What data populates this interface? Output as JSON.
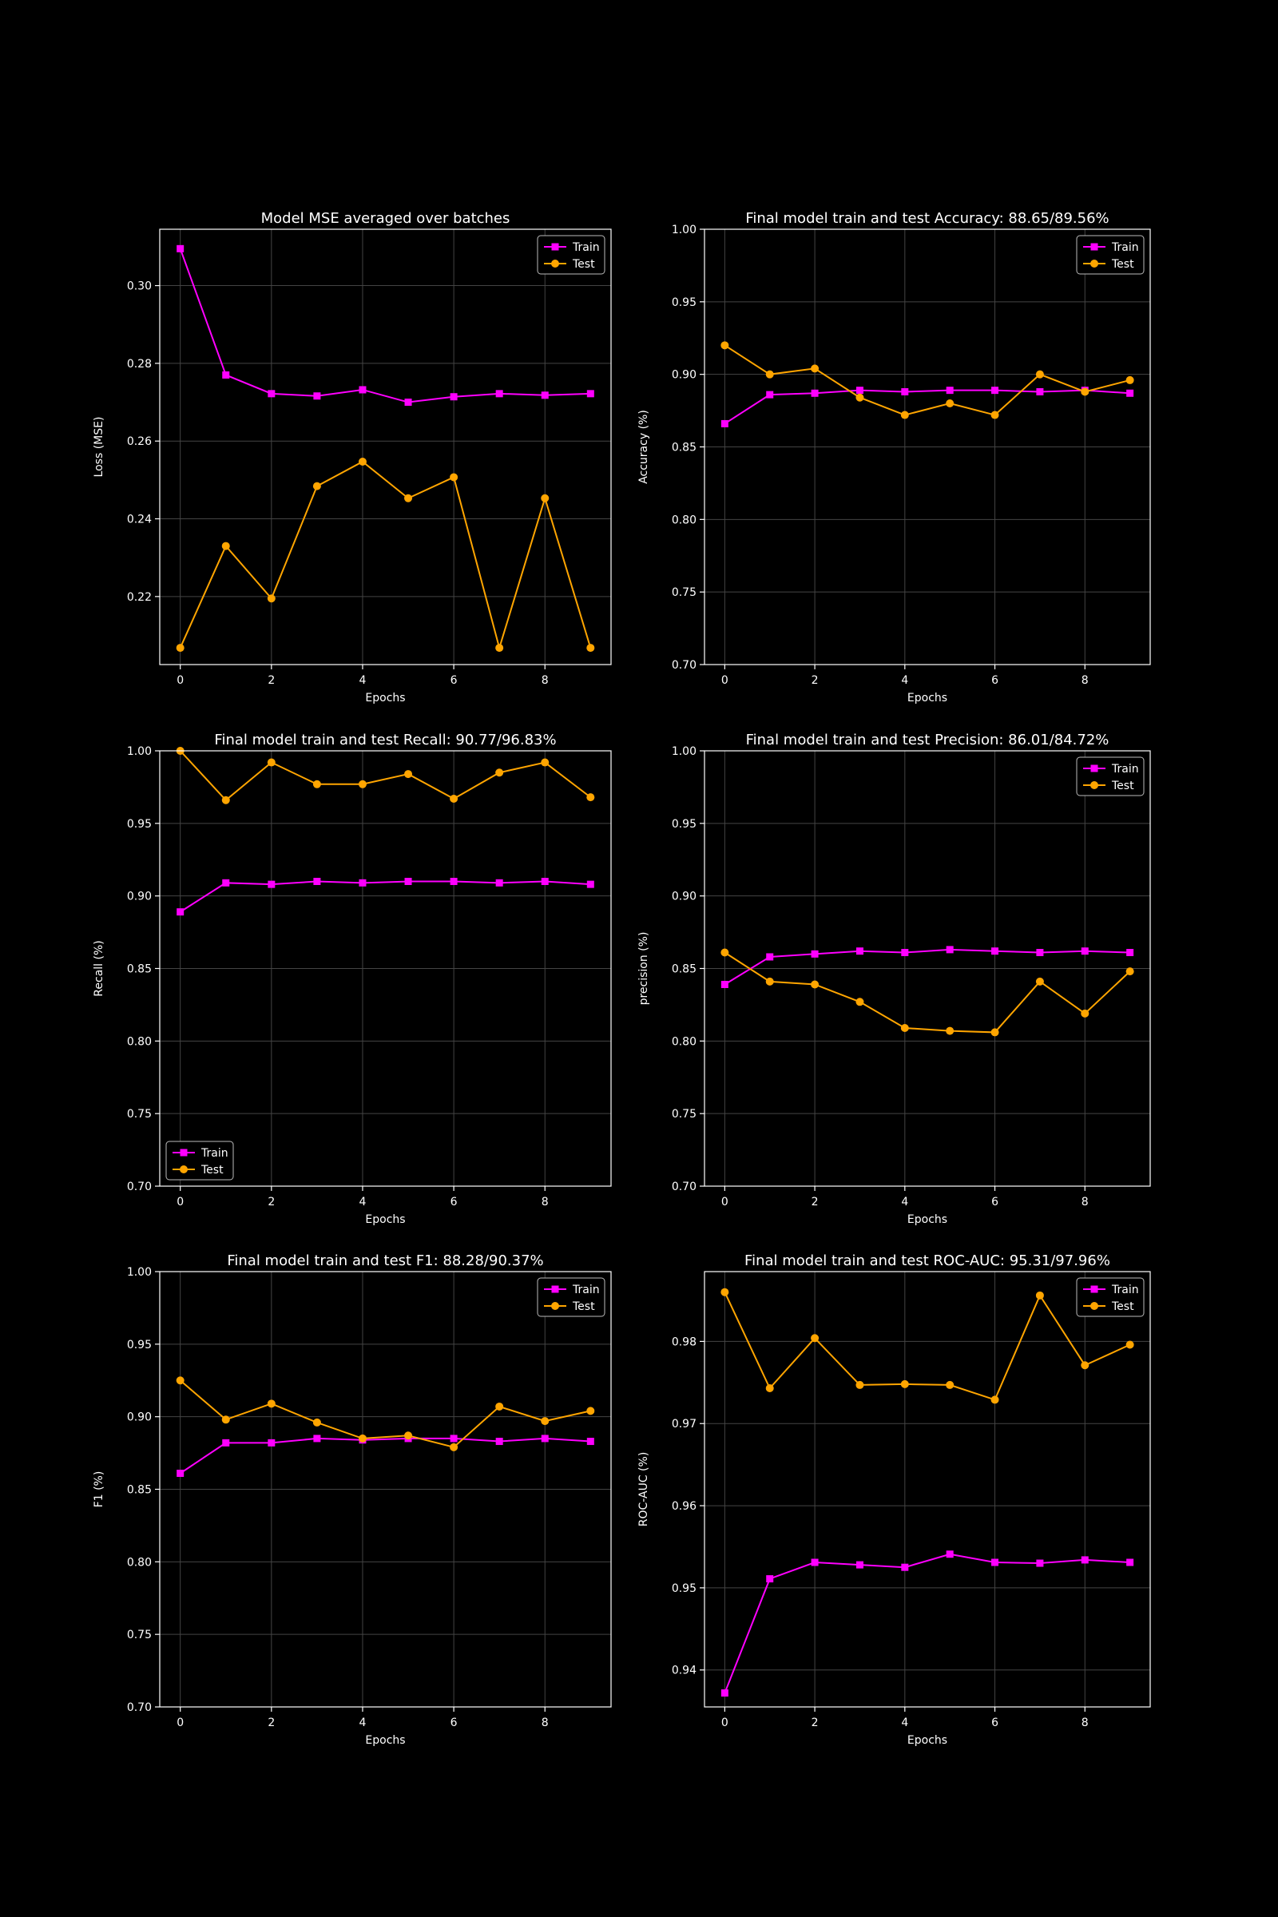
{
  "colors": {
    "background": "#000000",
    "train": "#ff00ff",
    "test": "#ffa500",
    "axes": "#ffffff",
    "grid": "#444444"
  },
  "chart_data": [
    {
      "type": "line",
      "title": "Model MSE averaged over batches",
      "xlabel": "Epochs",
      "ylabel": "Loss (MSE)",
      "x": [
        0,
        1,
        2,
        3,
        4,
        5,
        6,
        7,
        8,
        9
      ],
      "xlim": [
        -0.45,
        9.45
      ],
      "ylim": [
        0.2025,
        0.3145
      ],
      "xticks": [
        0,
        2,
        4,
        6,
        8
      ],
      "yticks": [
        0.22,
        0.24,
        0.26,
        0.28,
        0.3
      ],
      "tick_labels_x": [
        "0",
        "2",
        "4",
        "6",
        "8"
      ],
      "tick_labels_y": [
        "0.22",
        "0.24",
        "0.26",
        "0.28",
        "0.30"
      ],
      "grid": true,
      "legend": "top-right",
      "series": [
        {
          "name": "Train",
          "marker": "square",
          "values": [
            0.3095,
            0.277,
            0.2722,
            0.2716,
            0.2732,
            0.27,
            0.2714,
            0.2722,
            0.2718,
            0.2722
          ]
        },
        {
          "name": "Test",
          "marker": "circle",
          "values": [
            0.2068,
            0.233,
            0.2195,
            0.2484,
            0.2547,
            0.2453,
            0.2507,
            0.2068,
            0.2453,
            0.2068
          ]
        }
      ]
    },
    {
      "type": "line",
      "title": "Final model train and test Accuracy: 88.65/89.56%",
      "xlabel": "Epochs",
      "ylabel": "Accuracy (%)",
      "x": [
        0,
        1,
        2,
        3,
        4,
        5,
        6,
        7,
        8,
        9
      ],
      "xlim": [
        -0.45,
        9.45
      ],
      "ylim": [
        0.7,
        1.0
      ],
      "xticks": [
        0,
        2,
        4,
        6,
        8
      ],
      "yticks": [
        0.7,
        0.75,
        0.8,
        0.85,
        0.9,
        0.95,
        1.0
      ],
      "tick_labels_x": [
        "0",
        "2",
        "4",
        "6",
        "8"
      ],
      "tick_labels_y": [
        "0.70",
        "0.75",
        "0.80",
        "0.85",
        "0.90",
        "0.95",
        "1.00"
      ],
      "grid": true,
      "legend": "top-right",
      "series": [
        {
          "name": "Train",
          "marker": "square",
          "values": [
            0.866,
            0.886,
            0.887,
            0.889,
            0.888,
            0.889,
            0.889,
            0.888,
            0.889,
            0.887
          ]
        },
        {
          "name": "Test",
          "marker": "circle",
          "values": [
            0.92,
            0.9,
            0.904,
            0.884,
            0.872,
            0.88,
            0.872,
            0.9,
            0.888,
            0.896
          ]
        }
      ]
    },
    {
      "type": "line",
      "title": "Final model train and test Recall: 90.77/96.83%",
      "xlabel": "Epochs",
      "ylabel": "Recall (%)",
      "x": [
        0,
        1,
        2,
        3,
        4,
        5,
        6,
        7,
        8,
        9
      ],
      "xlim": [
        -0.45,
        9.45
      ],
      "ylim": [
        0.7,
        1.0
      ],
      "xticks": [
        0,
        2,
        4,
        6,
        8
      ],
      "yticks": [
        0.7,
        0.75,
        0.8,
        0.85,
        0.9,
        0.95,
        1.0
      ],
      "tick_labels_x": [
        "0",
        "2",
        "4",
        "6",
        "8"
      ],
      "tick_labels_y": [
        "0.70",
        "0.75",
        "0.80",
        "0.85",
        "0.90",
        "0.95",
        "1.00"
      ],
      "grid": true,
      "legend": "bottom-left",
      "series": [
        {
          "name": "Train",
          "marker": "square",
          "values": [
            0.889,
            0.909,
            0.908,
            0.91,
            0.909,
            0.91,
            0.91,
            0.909,
            0.91,
            0.908
          ]
        },
        {
          "name": "Test",
          "marker": "circle",
          "values": [
            1.0,
            0.966,
            0.992,
            0.977,
            0.977,
            0.984,
            0.967,
            0.985,
            0.992,
            0.968
          ]
        }
      ]
    },
    {
      "type": "line",
      "title": "Final model train and test Precision: 86.01/84.72%",
      "xlabel": "Epochs",
      "ylabel": "precision (%)",
      "x": [
        0,
        1,
        2,
        3,
        4,
        5,
        6,
        7,
        8,
        9
      ],
      "xlim": [
        -0.45,
        9.45
      ],
      "ylim": [
        0.7,
        1.0
      ],
      "xticks": [
        0,
        2,
        4,
        6,
        8
      ],
      "yticks": [
        0.7,
        0.75,
        0.8,
        0.85,
        0.9,
        0.95,
        1.0
      ],
      "tick_labels_x": [
        "0",
        "2",
        "4",
        "6",
        "8"
      ],
      "tick_labels_y": [
        "0.70",
        "0.75",
        "0.80",
        "0.85",
        "0.90",
        "0.95",
        "1.00"
      ],
      "grid": true,
      "legend": "top-right",
      "series": [
        {
          "name": "Train",
          "marker": "square",
          "values": [
            0.839,
            0.858,
            0.86,
            0.862,
            0.861,
            0.863,
            0.862,
            0.861,
            0.862,
            0.861
          ]
        },
        {
          "name": "Test",
          "marker": "circle",
          "values": [
            0.861,
            0.841,
            0.839,
            0.827,
            0.809,
            0.807,
            0.806,
            0.841,
            0.819,
            0.848
          ]
        }
      ]
    },
    {
      "type": "line",
      "title": "Final model train and test F1: 88.28/90.37%",
      "xlabel": "Epochs",
      "ylabel": "F1 (%)",
      "x": [
        0,
        1,
        2,
        3,
        4,
        5,
        6,
        7,
        8,
        9
      ],
      "xlim": [
        -0.45,
        9.45
      ],
      "ylim": [
        0.7,
        1.0
      ],
      "xticks": [
        0,
        2,
        4,
        6,
        8
      ],
      "yticks": [
        0.7,
        0.75,
        0.8,
        0.85,
        0.9,
        0.95,
        1.0
      ],
      "tick_labels_x": [
        "0",
        "2",
        "4",
        "6",
        "8"
      ],
      "tick_labels_y": [
        "0.70",
        "0.75",
        "0.80",
        "0.85",
        "0.90",
        "0.95",
        "1.00"
      ],
      "grid": true,
      "legend": "top-right",
      "series": [
        {
          "name": "Train",
          "marker": "square",
          "values": [
            0.861,
            0.882,
            0.882,
            0.885,
            0.884,
            0.885,
            0.885,
            0.883,
            0.885,
            0.883
          ]
        },
        {
          "name": "Test",
          "marker": "circle",
          "values": [
            0.925,
            0.898,
            0.909,
            0.896,
            0.885,
            0.887,
            0.879,
            0.907,
            0.897,
            0.904
          ]
        }
      ]
    },
    {
      "type": "line",
      "title": "Final model train and test ROC-AUC: 95.31/97.96%",
      "xlabel": "Epochs",
      "ylabel": "ROC-AUC (%)",
      "x": [
        0,
        1,
        2,
        3,
        4,
        5,
        6,
        7,
        8,
        9
      ],
      "xlim": [
        -0.45,
        9.45
      ],
      "ylim": [
        0.9355,
        0.9885
      ],
      "xticks": [
        0,
        2,
        4,
        6,
        8
      ],
      "yticks": [
        0.94,
        0.95,
        0.96,
        0.97,
        0.98
      ],
      "tick_labels_x": [
        "0",
        "2",
        "4",
        "6",
        "8"
      ],
      "tick_labels_y": [
        "0.94",
        "0.95",
        "0.96",
        "0.97",
        "0.98"
      ],
      "grid": true,
      "legend": "top-right",
      "series": [
        {
          "name": "Train",
          "marker": "square",
          "values": [
            0.9372,
            0.9511,
            0.9531,
            0.9528,
            0.9525,
            0.9541,
            0.9531,
            0.953,
            0.9534,
            0.9531
          ]
        },
        {
          "name": "Test",
          "marker": "circle",
          "values": [
            0.986,
            0.9743,
            0.9804,
            0.9747,
            0.9748,
            0.9747,
            0.9729,
            0.9856,
            0.9771,
            0.9796
          ]
        }
      ]
    }
  ]
}
